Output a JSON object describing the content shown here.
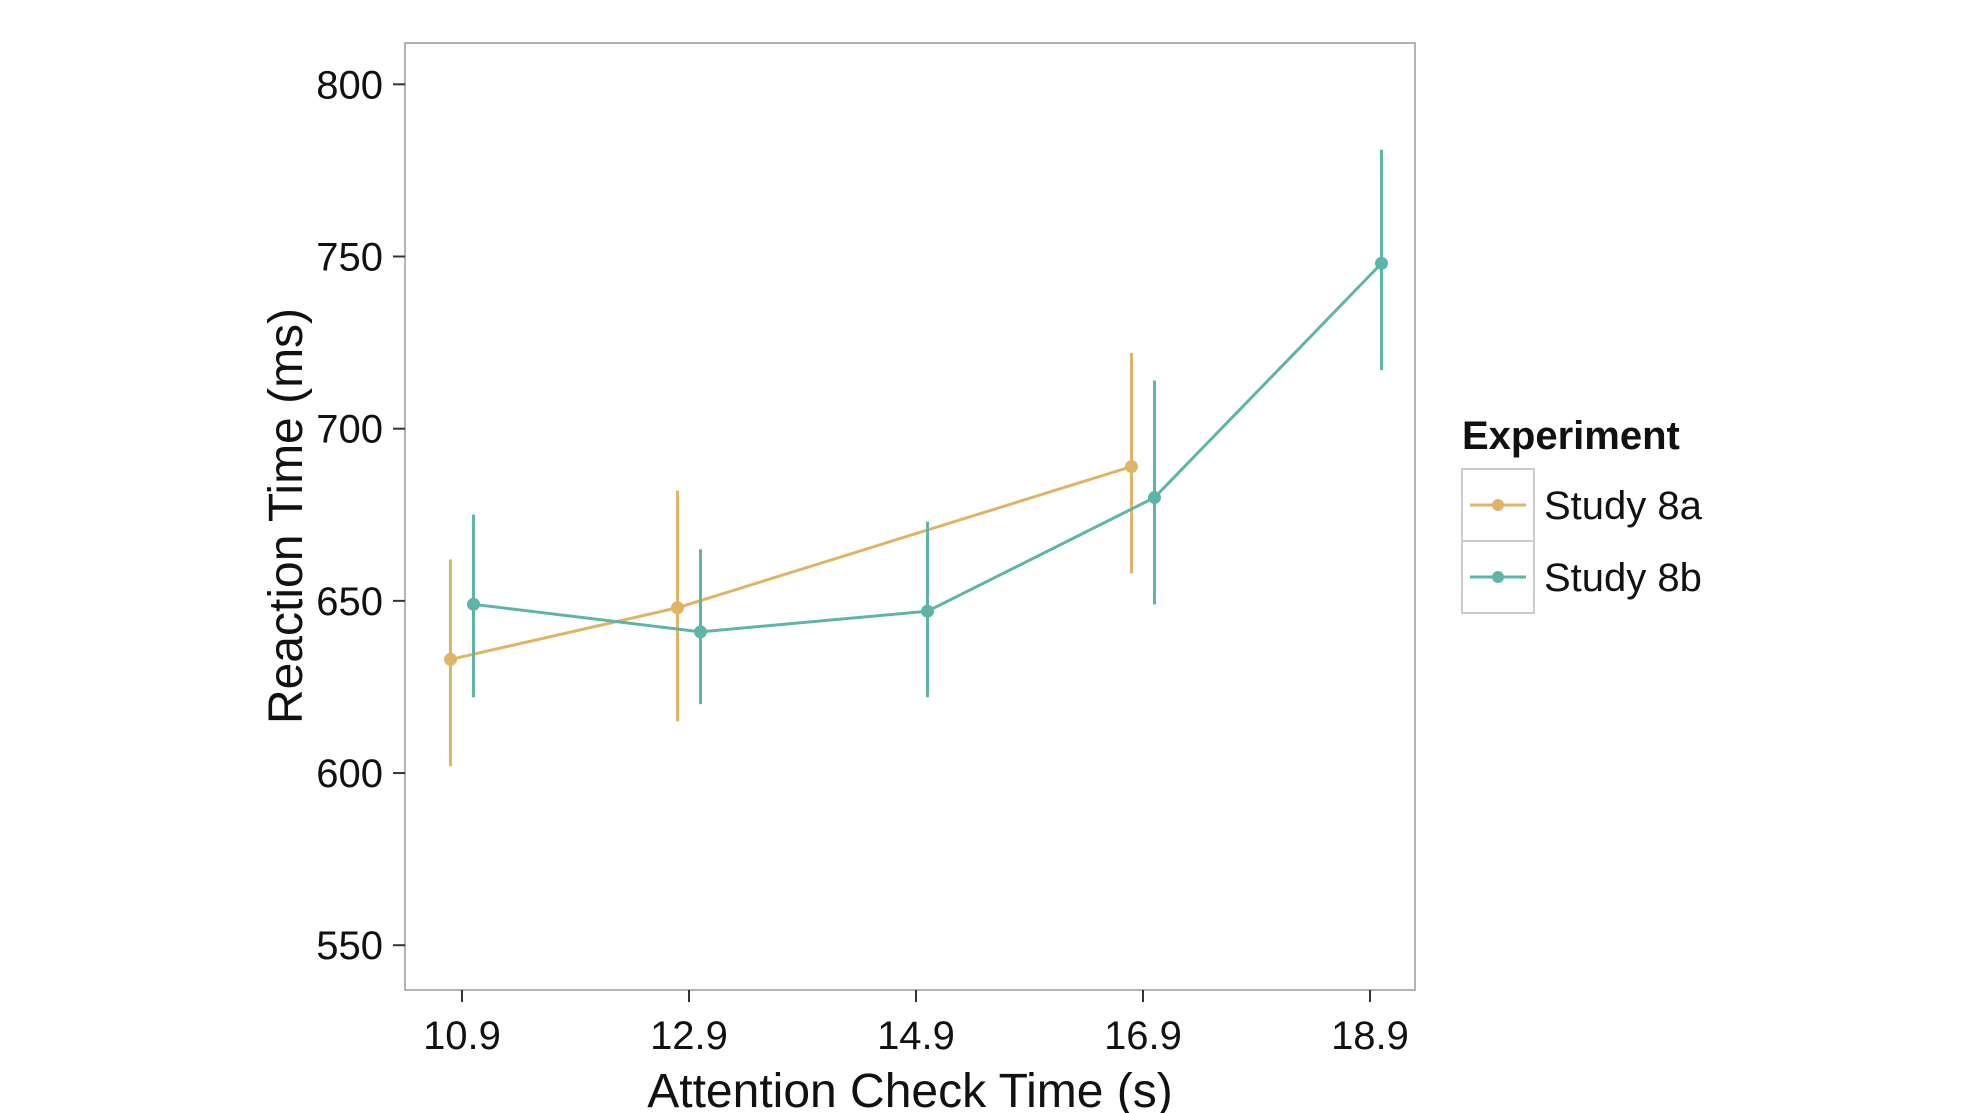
{
  "chart_data": {
    "type": "line",
    "xlabel": "Attention Check Time (s)",
    "ylabel": "Reaction Time (ms)",
    "categories": [
      "10.9",
      "12.9",
      "14.9",
      "16.9",
      "18.9"
    ],
    "y_ticks": [
      550,
      600,
      650,
      700,
      750,
      800
    ],
    "ylim": [
      537,
      812
    ],
    "grid": false,
    "legend": {
      "title": "Experiment",
      "placement": "right"
    },
    "series": [
      {
        "name": "Study 8a",
        "color": "#E0B465",
        "points": [
          {
            "x": "10.9",
            "y": 633,
            "lower": 602,
            "upper": 662
          },
          {
            "x": "12.9",
            "y": 648,
            "lower": 615,
            "upper": 682
          },
          {
            "x": "16.9",
            "y": 689,
            "lower": 658,
            "upper": 722
          }
        ]
      },
      {
        "name": "Study 8b",
        "color": "#5DB5A8",
        "points": [
          {
            "x": "10.9",
            "y": 649,
            "lower": 622,
            "upper": 675
          },
          {
            "x": "12.9",
            "y": 641,
            "lower": 620,
            "upper": 665
          },
          {
            "x": "14.9",
            "y": 647,
            "lower": 622,
            "upper": 673
          },
          {
            "x": "16.9",
            "y": 680,
            "lower": 649,
            "upper": 714
          },
          {
            "x": "18.9",
            "y": 748,
            "lower": 717,
            "upper": 781
          }
        ]
      }
    ]
  }
}
